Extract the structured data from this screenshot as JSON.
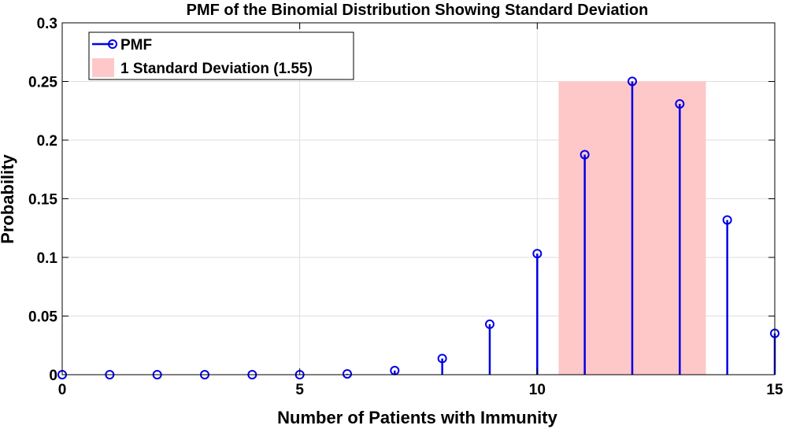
{
  "chart_data": {
    "type": "stem",
    "title": "PMF of the Binomial Distribution Showing Standard Deviation",
    "xlabel": "Number of Patients with Immunity",
    "ylabel": "Probability",
    "xlim": [
      0,
      15
    ],
    "ylim": [
      0,
      0.3
    ],
    "xticks": [
      "0",
      "5",
      "10",
      "15"
    ],
    "yticks": [
      "0",
      "0.05",
      "0.1",
      "0.15",
      "0.2",
      "0.25",
      "0.3"
    ],
    "xtick_values": [
      0,
      5,
      10,
      15
    ],
    "ytick_values": [
      0,
      0.05,
      0.1,
      0.15,
      0.2,
      0.25,
      0.3
    ],
    "grid": true,
    "legend_position": "top-left",
    "series": [
      {
        "name": "PMF",
        "color": "#0000e6",
        "x": [
          0,
          1,
          2,
          3,
          4,
          5,
          6,
          7,
          8,
          9,
          10,
          11,
          12,
          13,
          14,
          15
        ],
        "values": [
          0.0,
          0.0,
          0.0,
          0.0,
          0.0,
          0.0,
          0.0007,
          0.0035,
          0.0138,
          0.043,
          0.1032,
          0.1876,
          0.2501,
          0.2309,
          0.1319,
          0.0352
        ]
      }
    ],
    "band": {
      "name": "1 Standard Deviation (1.55)",
      "color": "#ffc8c8",
      "x_start": 10.45,
      "x_end": 13.55,
      "y_top": 0.25
    }
  }
}
